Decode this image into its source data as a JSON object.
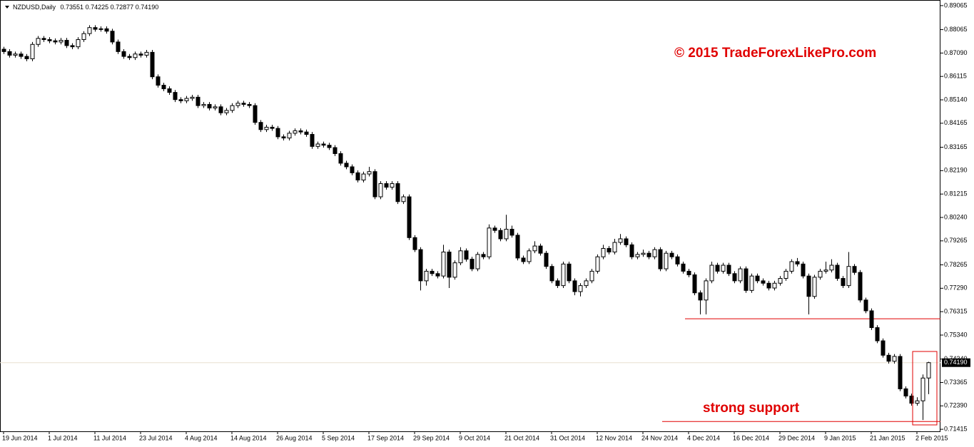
{
  "chart_data": {
    "type": "candlestick",
    "symbol": "NZDUSD,Daily",
    "last_labels": [
      "0.73551",
      "0.74225",
      "0.72877",
      "0.74190"
    ],
    "watermark": "© 2015 TradeForexLikePro.com",
    "annotation": "strong support",
    "current_price": {
      "value": 0.7419,
      "label": "0.74190"
    },
    "support_lines": [
      0.7602,
      0.7174
    ],
    "up_color": "#ffffff",
    "down_color": "#000000",
    "line_color": "#e00000",
    "ylim": [
      0.7133,
      0.8924
    ],
    "yticks": [
      {
        "value": 0.89065,
        "label": "0.89065"
      },
      {
        "value": 0.88065,
        "label": "0.88065"
      },
      {
        "value": 0.8709,
        "label": "0.87090"
      },
      {
        "value": 0.86115,
        "label": "0.86115"
      },
      {
        "value": 0.8514,
        "label": "0.85140"
      },
      {
        "value": 0.84165,
        "label": "0.84165"
      },
      {
        "value": 0.83165,
        "label": "0.83165"
      },
      {
        "value": 0.8219,
        "label": "0.82190"
      },
      {
        "value": 0.81215,
        "label": "0.81215"
      },
      {
        "value": 0.8024,
        "label": "0.80240"
      },
      {
        "value": 0.79265,
        "label": "0.79265"
      },
      {
        "value": 0.78265,
        "label": "0.78265"
      },
      {
        "value": 0.7729,
        "label": "0.77290"
      },
      {
        "value": 0.76315,
        "label": "0.76315"
      },
      {
        "value": 0.7534,
        "label": "0.75340"
      },
      {
        "value": 0.7434,
        "label": "0.74340"
      },
      {
        "value": 0.73365,
        "label": "0.73365"
      },
      {
        "value": 0.7239,
        "label": "0.72390"
      },
      {
        "value": 0.71415,
        "label": "0.71415"
      }
    ],
    "categories": [
      "19 Jun 2014",
      null,
      null,
      null,
      null,
      null,
      null,
      null,
      "1 Jul 2014",
      null,
      null,
      null,
      null,
      null,
      null,
      null,
      "11 Jul 2014",
      null,
      null,
      null,
      null,
      null,
      null,
      null,
      "23 Jul 2014",
      null,
      null,
      null,
      null,
      null,
      null,
      null,
      "4 Aug 2014",
      null,
      null,
      null,
      null,
      null,
      null,
      null,
      "14 Aug 2014",
      null,
      null,
      null,
      null,
      null,
      null,
      null,
      "26 Aug 2014",
      null,
      null,
      null,
      null,
      null,
      null,
      null,
      "5 Sep 2014",
      null,
      null,
      null,
      null,
      null,
      null,
      null,
      "17 Sep 2014",
      null,
      null,
      null,
      null,
      null,
      null,
      null,
      "29 Sep 2014",
      null,
      null,
      null,
      null,
      null,
      null,
      null,
      "9 Oct 2014",
      null,
      null,
      null,
      null,
      null,
      null,
      null,
      "21 Oct 2014",
      null,
      null,
      null,
      null,
      null,
      null,
      null,
      "31 Oct 2014",
      null,
      null,
      null,
      null,
      null,
      null,
      null,
      "12 Nov 2014",
      null,
      null,
      null,
      null,
      null,
      null,
      null,
      "24 Nov 2014",
      null,
      null,
      null,
      null,
      null,
      null,
      null,
      "4 Dec 2014",
      null,
      null,
      null,
      null,
      null,
      null,
      null,
      "16 Dec 2014",
      null,
      null,
      null,
      null,
      null,
      null,
      null,
      "29 Dec 2014",
      null,
      null,
      null,
      null,
      null,
      null,
      null,
      "9 Jan 2015",
      null,
      null,
      null,
      null,
      null,
      null,
      null,
      "21 Jan 2015",
      null,
      null,
      null,
      null,
      null,
      null,
      null,
      "2 Feb 2015",
      null,
      null
    ],
    "candles": [
      [
        0.8725,
        0.8735,
        0.8705,
        0.8715
      ],
      [
        0.8715,
        0.8725,
        0.869,
        0.87
      ],
      [
        0.87,
        0.8715,
        0.869,
        0.8705
      ],
      [
        0.8705,
        0.8715,
        0.8685,
        0.8695
      ],
      [
        0.8695,
        0.8705,
        0.8675,
        0.8685
      ],
      [
        0.8685,
        0.8755,
        0.8675,
        0.8745
      ],
      [
        0.8745,
        0.878,
        0.8735,
        0.877
      ],
      [
        0.877,
        0.878,
        0.8755,
        0.8765
      ],
      [
        0.8765,
        0.8775,
        0.875,
        0.876
      ],
      [
        0.876,
        0.877,
        0.8745,
        0.8755
      ],
      [
        0.8755,
        0.8772,
        0.8745,
        0.8762
      ],
      [
        0.8762,
        0.8772,
        0.873,
        0.874
      ],
      [
        0.874,
        0.875,
        0.8725,
        0.8735
      ],
      [
        0.8735,
        0.8775,
        0.8725,
        0.8765
      ],
      [
        0.8765,
        0.88,
        0.8755,
        0.879
      ],
      [
        0.879,
        0.8825,
        0.878,
        0.8815
      ],
      [
        0.8815,
        0.8825,
        0.8798,
        0.8808
      ],
      [
        0.8808,
        0.882,
        0.8798,
        0.881
      ],
      [
        0.881,
        0.882,
        0.879,
        0.88
      ],
      [
        0.88,
        0.881,
        0.8745,
        0.8755
      ],
      [
        0.8755,
        0.8765,
        0.8705,
        0.8715
      ],
      [
        0.8715,
        0.8725,
        0.8685,
        0.8695
      ],
      [
        0.8695,
        0.8705,
        0.868,
        0.869
      ],
      [
        0.869,
        0.8715,
        0.868,
        0.8705
      ],
      [
        0.8705,
        0.8715,
        0.869,
        0.87
      ],
      [
        0.87,
        0.8722,
        0.869,
        0.8712
      ],
      [
        0.8712,
        0.8722,
        0.86,
        0.861
      ],
      [
        0.861,
        0.862,
        0.8565,
        0.8575
      ],
      [
        0.8575,
        0.8585,
        0.855,
        0.856
      ],
      [
        0.856,
        0.857,
        0.8535,
        0.8545
      ],
      [
        0.8545,
        0.8555,
        0.8505,
        0.8515
      ],
      [
        0.8515,
        0.8525,
        0.85,
        0.851
      ],
      [
        0.851,
        0.853,
        0.85,
        0.852
      ],
      [
        0.852,
        0.8535,
        0.851,
        0.8525
      ],
      [
        0.8525,
        0.8535,
        0.848,
        0.849
      ],
      [
        0.849,
        0.8505,
        0.848,
        0.8495
      ],
      [
        0.8495,
        0.8505,
        0.847,
        0.848
      ],
      [
        0.848,
        0.8495,
        0.847,
        0.8485
      ],
      [
        0.8485,
        0.8495,
        0.845,
        0.846
      ],
      [
        0.846,
        0.848,
        0.845,
        0.847
      ],
      [
        0.847,
        0.85,
        0.846,
        0.849
      ],
      [
        0.849,
        0.851,
        0.848,
        0.85
      ],
      [
        0.85,
        0.851,
        0.8485,
        0.8495
      ],
      [
        0.8495,
        0.8505,
        0.848,
        0.849
      ],
      [
        0.849,
        0.85,
        0.841,
        0.842
      ],
      [
        0.842,
        0.843,
        0.838,
        0.839
      ],
      [
        0.839,
        0.841,
        0.838,
        0.84
      ],
      [
        0.84,
        0.841,
        0.8385,
        0.8395
      ],
      [
        0.8395,
        0.8405,
        0.835,
        0.836
      ],
      [
        0.836,
        0.837,
        0.8345,
        0.8355
      ],
      [
        0.8355,
        0.8385,
        0.8345,
        0.8375
      ],
      [
        0.8375,
        0.8395,
        0.8365,
        0.8385
      ],
      [
        0.8385,
        0.8395,
        0.837,
        0.838
      ],
      [
        0.838,
        0.839,
        0.836,
        0.837
      ],
      [
        0.837,
        0.838,
        0.831,
        0.832
      ],
      [
        0.832,
        0.834,
        0.831,
        0.833
      ],
      [
        0.833,
        0.834,
        0.8315,
        0.8325
      ],
      [
        0.8325,
        0.8335,
        0.8305,
        0.8315
      ],
      [
        0.8315,
        0.8325,
        0.828,
        0.829
      ],
      [
        0.829,
        0.83,
        0.824,
        0.825
      ],
      [
        0.825,
        0.826,
        0.8225,
        0.8235
      ],
      [
        0.8235,
        0.8245,
        0.82,
        0.821
      ],
      [
        0.821,
        0.822,
        0.817,
        0.818
      ],
      [
        0.818,
        0.8215,
        0.817,
        0.8205
      ],
      [
        0.8205,
        0.8235,
        0.8195,
        0.8215
      ],
      [
        0.8215,
        0.8225,
        0.81,
        0.811
      ],
      [
        0.811,
        0.8175,
        0.81,
        0.8165
      ],
      [
        0.8165,
        0.8175,
        0.814,
        0.815
      ],
      [
        0.815,
        0.8175,
        0.814,
        0.8165
      ],
      [
        0.8165,
        0.8175,
        0.808,
        0.809
      ],
      [
        0.809,
        0.812,
        0.808,
        0.811
      ],
      [
        0.811,
        0.812,
        0.793,
        0.794
      ],
      [
        0.794,
        0.795,
        0.788,
        0.789
      ],
      [
        0.789,
        0.79,
        0.772,
        0.776
      ],
      [
        0.776,
        0.781,
        0.774,
        0.78
      ],
      [
        0.78,
        0.781,
        0.778,
        0.779
      ],
      [
        0.779,
        0.78,
        0.777,
        0.778
      ],
      [
        0.778,
        0.791,
        0.777,
        0.788
      ],
      [
        0.788,
        0.789,
        0.773,
        0.7775
      ],
      [
        0.7775,
        0.7845,
        0.7765,
        0.7835
      ],
      [
        0.7835,
        0.79,
        0.7825,
        0.7885
      ],
      [
        0.7885,
        0.7895,
        0.784,
        0.785
      ],
      [
        0.785,
        0.786,
        0.78,
        0.781
      ],
      [
        0.781,
        0.788,
        0.78,
        0.787
      ],
      [
        0.787,
        0.788,
        0.785,
        0.786
      ],
      [
        0.786,
        0.7995,
        0.785,
        0.798
      ],
      [
        0.798,
        0.799,
        0.796,
        0.797
      ],
      [
        0.797,
        0.798,
        0.7925,
        0.7935
      ],
      [
        0.7935,
        0.8035,
        0.7925,
        0.7975
      ],
      [
        0.7975,
        0.799,
        0.794,
        0.795
      ],
      [
        0.795,
        0.796,
        0.7845,
        0.7855
      ],
      [
        0.7855,
        0.7865,
        0.783,
        0.784
      ],
      [
        0.784,
        0.7895,
        0.783,
        0.7885
      ],
      [
        0.7885,
        0.7925,
        0.7875,
        0.7905
      ],
      [
        0.7905,
        0.7915,
        0.7865,
        0.7875
      ],
      [
        0.7875,
        0.7885,
        0.781,
        0.782
      ],
      [
        0.782,
        0.783,
        0.775,
        0.776
      ],
      [
        0.776,
        0.777,
        0.773,
        0.774
      ],
      [
        0.774,
        0.784,
        0.773,
        0.783
      ],
      [
        0.783,
        0.784,
        0.775,
        0.776
      ],
      [
        0.776,
        0.777,
        0.77,
        0.7715
      ],
      [
        0.7715,
        0.775,
        0.7695,
        0.774
      ],
      [
        0.774,
        0.777,
        0.773,
        0.776
      ],
      [
        0.776,
        0.781,
        0.775,
        0.78
      ],
      [
        0.78,
        0.787,
        0.779,
        0.786
      ],
      [
        0.786,
        0.791,
        0.785,
        0.7895
      ],
      [
        0.7895,
        0.7905,
        0.787,
        0.788
      ],
      [
        0.788,
        0.7935,
        0.787,
        0.792
      ],
      [
        0.792,
        0.7955,
        0.791,
        0.7935
      ],
      [
        0.7935,
        0.7945,
        0.79,
        0.791
      ],
      [
        0.791,
        0.792,
        0.785,
        0.786
      ],
      [
        0.786,
        0.788,
        0.785,
        0.787
      ],
      [
        0.787,
        0.789,
        0.786,
        0.7875
      ],
      [
        0.7875,
        0.7885,
        0.785,
        0.786
      ],
      [
        0.786,
        0.79,
        0.785,
        0.789
      ],
      [
        0.789,
        0.79,
        0.78,
        0.781
      ],
      [
        0.781,
        0.7885,
        0.78,
        0.7875
      ],
      [
        0.7875,
        0.7885,
        0.785,
        0.786
      ],
      [
        0.786,
        0.787,
        0.782,
        0.783
      ],
      [
        0.783,
        0.784,
        0.779,
        0.78
      ],
      [
        0.78,
        0.781,
        0.7775,
        0.7785
      ],
      [
        0.7785,
        0.7795,
        0.77,
        0.771
      ],
      [
        0.771,
        0.772,
        0.762,
        0.768
      ],
      [
        0.768,
        0.777,
        0.762,
        0.776
      ],
      [
        0.776,
        0.784,
        0.775,
        0.7825
      ],
      [
        0.7825,
        0.7835,
        0.779,
        0.78
      ],
      [
        0.78,
        0.7835,
        0.779,
        0.7825
      ],
      [
        0.7825,
        0.7835,
        0.778,
        0.779
      ],
      [
        0.779,
        0.78,
        0.775,
        0.776
      ],
      [
        0.776,
        0.782,
        0.775,
        0.781
      ],
      [
        0.781,
        0.782,
        0.771,
        0.772
      ],
      [
        0.772,
        0.779,
        0.771,
        0.778
      ],
      [
        0.778,
        0.779,
        0.775,
        0.776
      ],
      [
        0.776,
        0.777,
        0.774,
        0.775
      ],
      [
        0.775,
        0.776,
        0.772,
        0.773
      ],
      [
        0.773,
        0.776,
        0.772,
        0.775
      ],
      [
        0.775,
        0.778,
        0.774,
        0.777
      ],
      [
        0.777,
        0.781,
        0.776,
        0.78
      ],
      [
        0.78,
        0.785,
        0.779,
        0.784
      ],
      [
        0.784,
        0.7855,
        0.782,
        0.783
      ],
      [
        0.783,
        0.784,
        0.777,
        0.778
      ],
      [
        0.778,
        0.779,
        0.762,
        0.7695
      ],
      [
        0.7695,
        0.7785,
        0.7685,
        0.7775
      ],
      [
        0.7775,
        0.781,
        0.7765,
        0.78
      ],
      [
        0.78,
        0.784,
        0.779,
        0.7805
      ],
      [
        0.7805,
        0.785,
        0.7795,
        0.7825
      ],
      [
        0.7825,
        0.7835,
        0.776,
        0.777
      ],
      [
        0.777,
        0.778,
        0.773,
        0.774
      ],
      [
        0.774,
        0.788,
        0.773,
        0.782
      ],
      [
        0.782,
        0.783,
        0.7785,
        0.7795
      ],
      [
        0.7795,
        0.7805,
        0.767,
        0.768
      ],
      [
        0.768,
        0.769,
        0.7625,
        0.7635
      ],
      [
        0.7635,
        0.7645,
        0.7555,
        0.7565
      ],
      [
        0.7565,
        0.7575,
        0.75,
        0.751
      ],
      [
        0.751,
        0.752,
        0.744,
        0.745
      ],
      [
        0.745,
        0.746,
        0.7415,
        0.7425
      ],
      [
        0.7425,
        0.7455,
        0.7415,
        0.7445
      ],
      [
        0.7445,
        0.7455,
        0.73,
        0.731
      ],
      [
        0.731,
        0.732,
        0.727,
        0.728
      ],
      [
        0.728,
        0.729,
        0.724,
        0.725
      ],
      [
        0.725,
        0.7275,
        0.724,
        0.726
      ],
      [
        0.726,
        0.737,
        0.718,
        0.7355
      ],
      [
        0.73551,
        0.74225,
        0.72877,
        0.7419
      ]
    ]
  }
}
